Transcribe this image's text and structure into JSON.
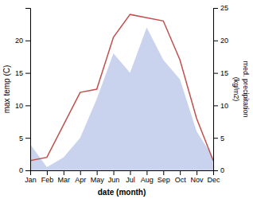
{
  "chart_data": {
    "type": "line",
    "x_label": "date (month)",
    "y_label": "max temp (C)",
    "y2_label": "med. precipitation\n(kg/m2)",
    "categories": [
      "Jan",
      "Feb",
      "Mar",
      "Apr",
      "May",
      "Jun",
      "Jul",
      "Aug",
      "Sep",
      "Oct",
      "Nov",
      "Dec"
    ],
    "series": [
      {
        "type": "area",
        "axis": "y2",
        "color": "#b8c4e8",
        "values": [
          4.0,
          0.5,
          2.0,
          5.0,
          11.0,
          18.0,
          15.0,
          22.0,
          17.0,
          14.0,
          6.0,
          2.0
        ]
      },
      {
        "type": "line",
        "color": "#c0504d",
        "values": [
          1.5,
          2.0,
          7.0,
          12.0,
          12.5,
          20.5,
          24.0,
          23.5,
          23.0,
          17.0,
          8.0,
          1.5
        ]
      }
    ],
    "ylim": [
      0,
      25
    ],
    "yticks": [
      0,
      5,
      10,
      15,
      20
    ],
    "y2lim": [
      0,
      25
    ],
    "y2ticks": [
      0,
      5,
      10,
      15,
      20,
      25
    ],
    "grid": false
  }
}
